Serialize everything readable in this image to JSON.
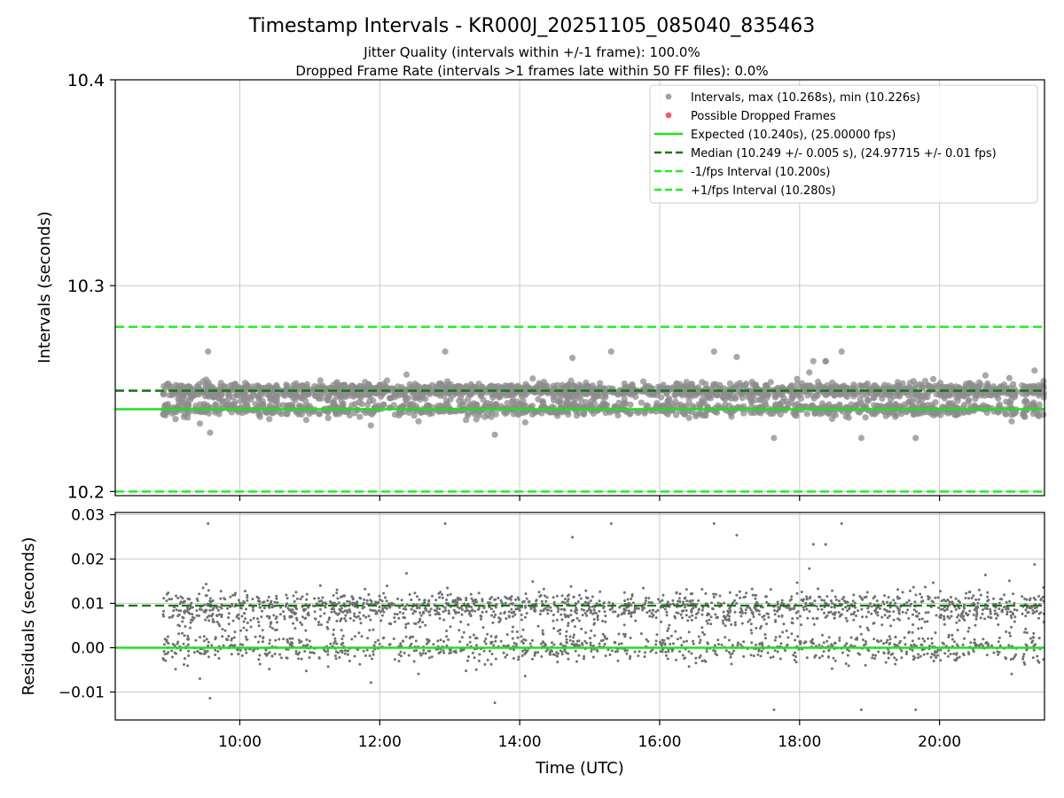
{
  "chart_data": [
    {
      "type": "scatter",
      "title": "Timestamp Intervals - KR000J_20251105_085040_835463",
      "subtitle_lines": [
        "Jitter Quality (intervals within +/-1 frame): 100.0%",
        "Dropped Frame Rate (intervals >1 frames late within 50 FF files): 0.0%"
      ],
      "ylabel": "Intervals (seconds)",
      "xlabel": "",
      "xlim_hours": [
        8.22,
        21.5
      ],
      "ylim": [
        10.198,
        10.4
      ],
      "yticks": [
        10.2,
        10.3,
        10.4
      ],
      "ytick_labels": [
        "10.2",
        "10.3",
        "10.4"
      ],
      "xticks_hours": [
        10,
        12,
        14,
        16,
        18,
        20
      ],
      "grid": true,
      "legend_position": "top-right",
      "legend": [
        {
          "label": "Intervals, max (10.268s), min (10.226s)",
          "kind": "marker",
          "color": "#a0a0a0"
        },
        {
          "label": "Possible Dropped Frames",
          "kind": "marker",
          "color": "#f06060"
        },
        {
          "label": "Expected (10.240s), (25.00000 fps)",
          "kind": "solid",
          "color": "#22dd22"
        },
        {
          "label": "Median (10.249 +/- 0.005 s), (24.97715 +/- 0.01 fps)",
          "kind": "dashed",
          "color": "#117711"
        },
        {
          "label": "-1/fps Interval (10.200s)",
          "kind": "dashed",
          "color": "#22ee22"
        },
        {
          "label": "+1/fps Interval (10.280s)",
          "kind": "dashed",
          "color": "#22ee22"
        }
      ],
      "reference_lines": {
        "expected": 10.24,
        "median": 10.249,
        "lower": 10.2,
        "upper": 10.28
      },
      "series": [
        {
          "name": "Intervals",
          "time_range_hours": [
            8.9,
            21.5
          ],
          "max": 10.268,
          "min": 10.226,
          "clusters": [
            10.24,
            10.249
          ],
          "color": "#888888"
        }
      ]
    },
    {
      "type": "scatter",
      "ylabel": "Residuals (seconds)",
      "xlabel": "Time (UTC)",
      "xlim_hours": [
        8.22,
        21.5
      ],
      "ylim": [
        -0.0163,
        0.0305
      ],
      "yticks": [
        -0.01,
        0.0,
        0.01,
        0.02,
        0.03
      ],
      "ytick_labels": [
        "−0.01",
        "0.00",
        "0.01",
        "0.02",
        "0.03"
      ],
      "xticks_hours": [
        10,
        12,
        14,
        16,
        18,
        20
      ],
      "xtick_labels": [
        "10:00",
        "12:00",
        "14:00",
        "16:00",
        "18:00",
        "20:00"
      ],
      "grid": true,
      "reference_lines": {
        "zero": 0.0,
        "median_offset": 0.0095
      },
      "series": [
        {
          "name": "Residuals",
          "time_range_hours": [
            8.9,
            21.5
          ],
          "max": 0.028,
          "min": -0.014,
          "clusters": [
            0.0,
            0.0095
          ],
          "color": "#777777"
        }
      ]
    }
  ]
}
